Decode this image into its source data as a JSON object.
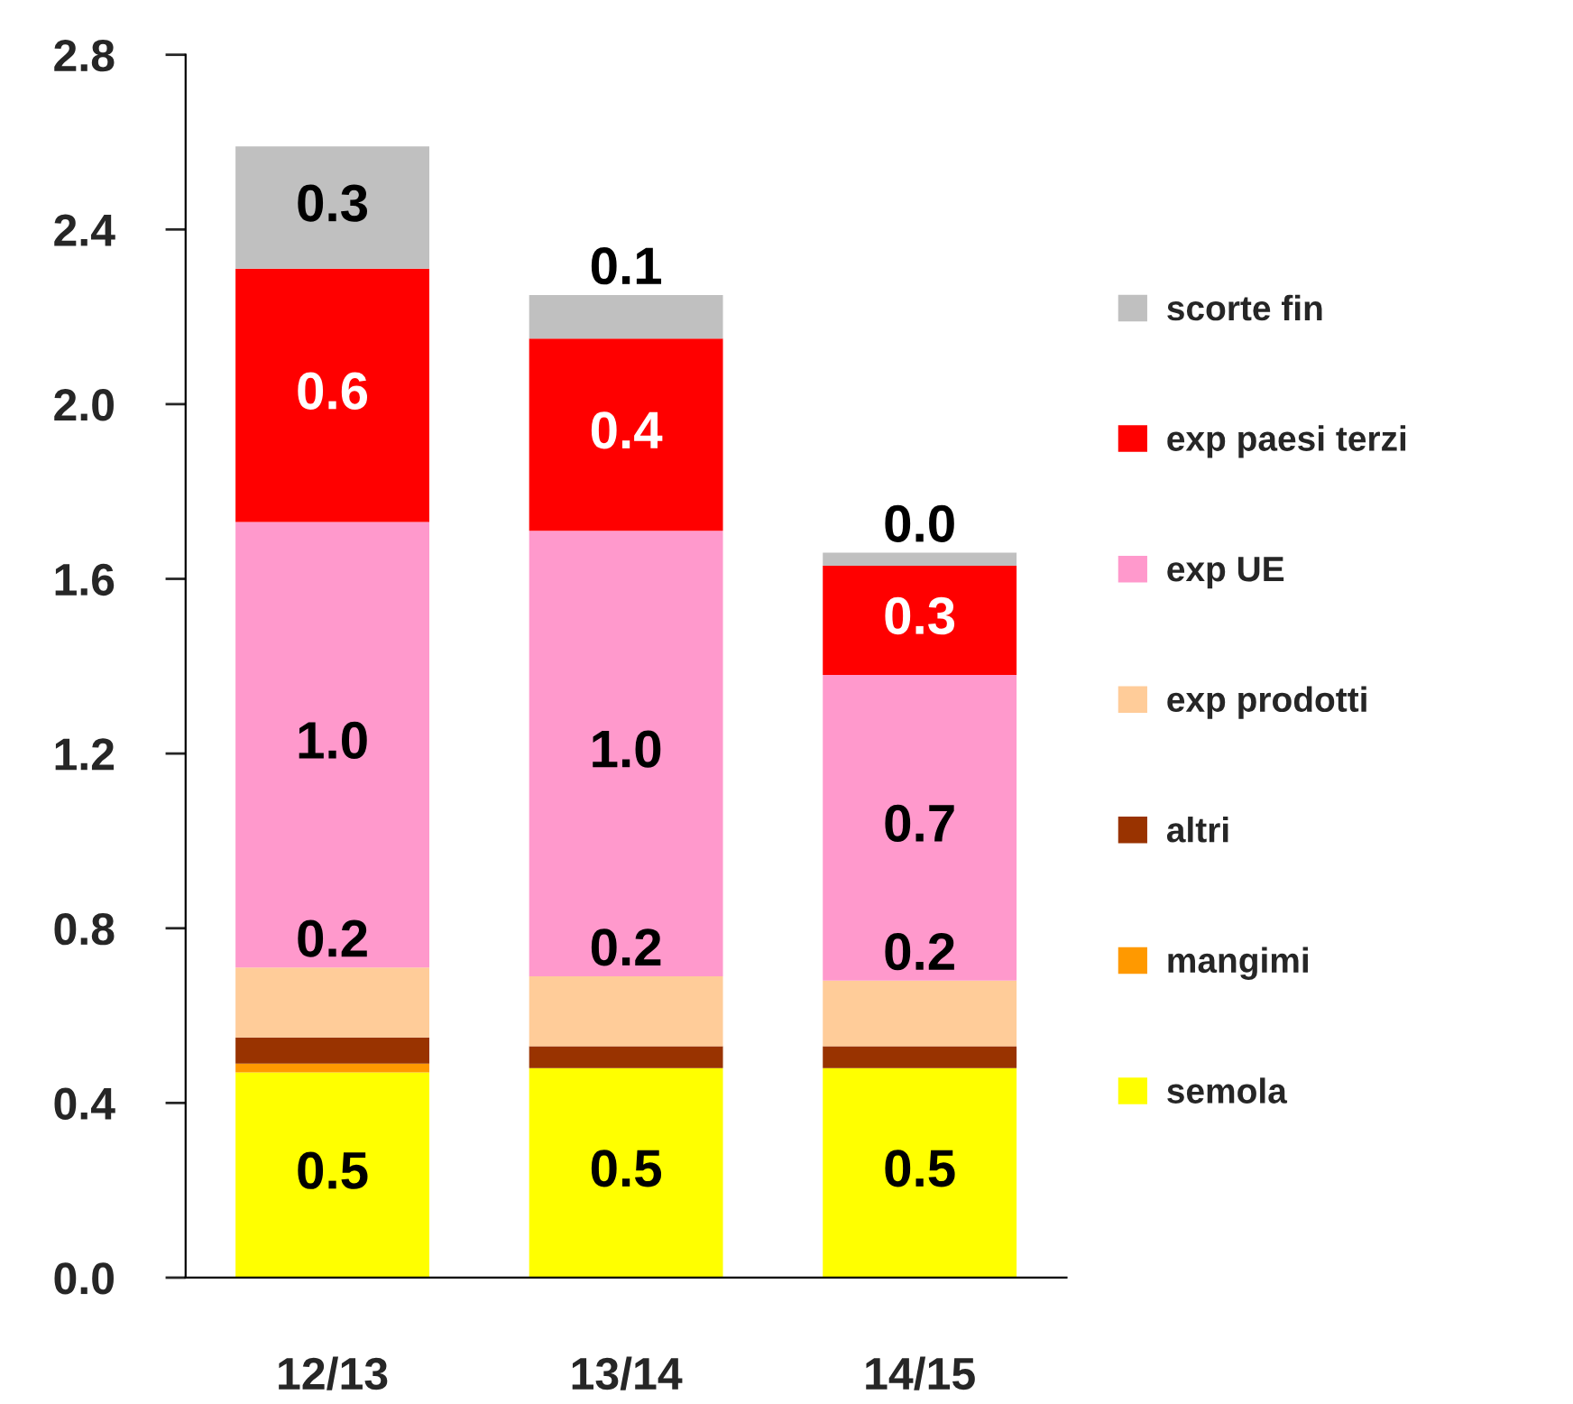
{
  "chart_data": {
    "type": "bar",
    "stacked": true,
    "categories": [
      "12/13",
      "13/14",
      "14/15"
    ],
    "ylim": [
      0,
      2.8
    ],
    "yticks": [
      {
        "value": 0,
        "label": "0.0"
      },
      {
        "value": 0.4,
        "label": "0.4"
      },
      {
        "value": 0.8,
        "label": "0.8"
      },
      {
        "value": 1.2,
        "label": "1.2"
      },
      {
        "value": 1.6,
        "label": "1.6"
      },
      {
        "value": 2.0,
        "label": "2.0"
      },
      {
        "value": 2.4,
        "label": "2.4"
      },
      {
        "value": 2.8,
        "label": "2.8"
      }
    ],
    "grid": false,
    "legend": "right",
    "series": [
      {
        "name": "semola",
        "color": "#ffff00",
        "values": [
          0.47,
          0.48,
          0.48
        ],
        "value_labels": [
          "0.5",
          "0.5",
          "0.5"
        ]
      },
      {
        "name": "mangimi",
        "color": "#ff9900",
        "values": [
          0.02,
          0,
          0
        ],
        "value_labels": [
          null,
          null,
          null
        ]
      },
      {
        "name": "altri",
        "color": "#993300",
        "values": [
          0.06,
          0.05,
          0.05
        ],
        "value_labels": [
          null,
          null,
          null
        ]
      },
      {
        "name": "exp prodotti",
        "color": "#ffcc99",
        "values": [
          0.16,
          0.16,
          0.15
        ],
        "value_labels": [
          "0.2",
          "0.2",
          "0.2"
        ]
      },
      {
        "name": "exp UE",
        "color": "#ff99cc",
        "values": [
          1.02,
          1.02,
          0.7
        ],
        "value_labels": [
          "1.0",
          "1.0",
          "0.7"
        ]
      },
      {
        "name": "exp paesi terzi",
        "color": "#ff0000",
        "values": [
          0.58,
          0.44,
          0.25
        ],
        "value_labels": [
          "0.6",
          "0.4",
          "0.3"
        ]
      },
      {
        "name": "scorte fin",
        "color": "#c0c0c0",
        "values": [
          0.28,
          0.1,
          0.03
        ],
        "value_labels": [
          "0.3",
          "0.1",
          "0.0"
        ]
      }
    ]
  }
}
